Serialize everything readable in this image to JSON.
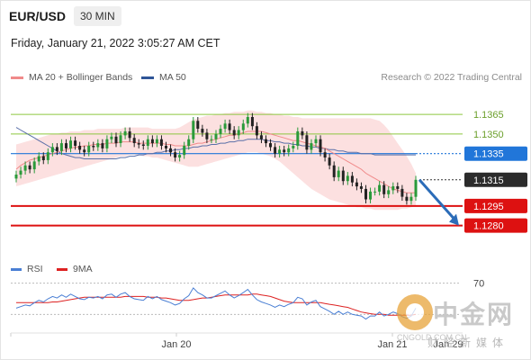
{
  "header": {
    "symbol": "EUR/USD",
    "timeframe": "30 MIN",
    "timestamp": "Friday, January 21, 2022 3:05:27 AM CET"
  },
  "legend": {
    "items": [
      {
        "label": "MA 20 + Bollinger Bands",
        "color": "#f08a8a"
      },
      {
        "label": "MA 50",
        "color": "#2f5597"
      }
    ],
    "copyright": "Research © 2022 Trading Central"
  },
  "rsi_legend": {
    "items": [
      {
        "label": "RSI",
        "color": "#4a7fd4"
      },
      {
        "label": "9MA",
        "color": "#dd2222"
      }
    ]
  },
  "watermark": {
    "cn": "中金网",
    "url": "CNGOLD.COM.CN",
    "media": "财经新媒体"
  },
  "chart_data": {
    "type": "candlestick",
    "x_tick_labels": [
      "Jan 20",
      "Jan 21"
    ],
    "extra_x_label": "Jan 29",
    "y_range": [
      1.1255,
      1.1385
    ],
    "price_levels": [
      {
        "label": "1.1365",
        "value": 1.1365,
        "kind": "resistance",
        "color": "#8dc63f"
      },
      {
        "label": "1.1350",
        "value": 1.135,
        "kind": "resistance",
        "color": "#8dc63f"
      },
      {
        "label": "1.1335",
        "value": 1.1335,
        "kind": "pivot",
        "color": "#2176d9"
      },
      {
        "label": "1.1315",
        "value": 1.1315,
        "kind": "last",
        "color": "#333333"
      },
      {
        "label": "1.1295",
        "value": 1.1295,
        "kind": "support",
        "color": "#dd1111"
      },
      {
        "label": "1.1280",
        "value": 1.128,
        "kind": "support",
        "color": "#dd1111"
      }
    ],
    "forecast_arrow": {
      "from": 1.1315,
      "to": 1.128
    },
    "close": [
      1.1319,
      1.1322,
      1.1326,
      1.1323,
      1.1329,
      1.1333,
      1.133,
      1.1336,
      1.134,
      1.1337,
      1.1343,
      1.1339,
      1.1345,
      1.1341,
      1.1338,
      1.1336,
      1.1341,
      1.134,
      1.1343,
      1.1339,
      1.1346,
      1.1348,
      1.1343,
      1.1349,
      1.1352,
      1.1347,
      1.1343,
      1.1342,
      1.1341,
      1.1346,
      1.1343,
      1.1346,
      1.1341,
      1.1339,
      1.1336,
      1.1332,
      1.1334,
      1.1341,
      1.1346,
      1.136,
      1.1354,
      1.1351,
      1.1346,
      1.1346,
      1.135,
      1.1354,
      1.1358,
      1.1353,
      1.1349,
      1.1353,
      1.1358,
      1.1363,
      1.1356,
      1.1349,
      1.1346,
      1.1343,
      1.134,
      1.1335,
      1.1338,
      1.1336,
      1.1339,
      1.1341,
      1.1352,
      1.1349,
      1.1338,
      1.1343,
      1.1346,
      1.1336,
      1.1332,
      1.1326,
      1.1317,
      1.1322,
      1.1314,
      1.1318,
      1.1313,
      1.131,
      1.1308,
      1.13,
      1.1306,
      1.1306,
      1.1311,
      1.1304,
      1.1307,
      1.131,
      1.1308,
      1.1302,
      1.1299,
      1.1302,
      1.1315
    ],
    "ma20": [
      1.1323,
      1.1326,
      1.1328,
      1.133,
      1.1331,
      1.1332,
      1.1333,
      1.1334,
      1.1335,
      1.1336,
      1.1337,
      1.1338,
      1.1339,
      1.134,
      1.134,
      1.1341,
      1.1341,
      1.1342,
      1.1342,
      1.1342,
      1.1343,
      1.1343,
      1.1343,
      1.1344,
      1.1344,
      1.1344,
      1.1344,
      1.1343,
      1.1343,
      1.1343,
      1.1343,
      1.1343,
      1.1343,
      1.1342,
      1.1342,
      1.1341,
      1.1341,
      1.1341,
      1.1341,
      1.1342,
      1.1343,
      1.1343,
      1.1344,
      1.1345,
      1.1346,
      1.1347,
      1.1348,
      1.1349,
      1.1349,
      1.135,
      1.1351,
      1.1352,
      1.1352,
      1.1352,
      1.1352,
      1.1351,
      1.135,
      1.1349,
      1.1348,
      1.1347,
      1.1346,
      1.1345,
      1.1345,
      1.1344,
      1.1343,
      1.1342,
      1.1341,
      1.134,
      1.1339,
      1.1337,
      1.1335,
      1.1333,
      1.1331,
      1.1329,
      1.1327,
      1.1325,
      1.1323,
      1.132,
      1.1318,
      1.1316,
      1.1314,
      1.1312,
      1.131,
      1.1308,
      1.1307,
      1.1306,
      1.1305,
      1.1305,
      1.1305
    ],
    "bb_upper": [
      1.1342,
      1.1343,
      1.1344,
      1.1345,
      1.1346,
      1.1347,
      1.1348,
      1.1349,
      1.135,
      1.135,
      1.1351,
      1.1351,
      1.1352,
      1.1352,
      1.1352,
      1.1353,
      1.1353,
      1.1353,
      1.1354,
      1.1354,
      1.1354,
      1.1354,
      1.1354,
      1.1354,
      1.1355,
      1.1355,
      1.1355,
      1.1355,
      1.1355,
      1.1355,
      1.1354,
      1.1354,
      1.1354,
      1.1354,
      1.1354,
      1.1354,
      1.1355,
      1.1357,
      1.1359,
      1.1361,
      1.1362,
      1.1363,
      1.1364,
      1.1364,
      1.1365,
      1.1365,
      1.1366,
      1.1366,
      1.1367,
      1.1367,
      1.1367,
      1.1368,
      1.1368,
      1.1367,
      1.1367,
      1.1366,
      1.1366,
      1.1365,
      1.1365,
      1.1364,
      1.1364,
      1.1363,
      1.1363,
      1.1362,
      1.1362,
      1.1362,
      1.1362,
      1.1362,
      1.1362,
      1.1362,
      1.1362,
      1.1362,
      1.1362,
      1.1362,
      1.1362,
      1.1362,
      1.1362,
      1.1362,
      1.1362,
      1.1361,
      1.136,
      1.1357,
      1.1353,
      1.1348,
      1.1343,
      1.1338,
      1.1333,
      1.1327,
      1.132
    ],
    "bb_lower": [
      1.131,
      1.1311,
      1.1312,
      1.1313,
      1.1314,
      1.1315,
      1.1316,
      1.1317,
      1.1318,
      1.1319,
      1.132,
      1.1321,
      1.1322,
      1.1323,
      1.1324,
      1.1325,
      1.1326,
      1.1327,
      1.1328,
      1.1329,
      1.133,
      1.1331,
      1.1332,
      1.1333,
      1.1333,
      1.1334,
      1.1334,
      1.1334,
      1.1333,
      1.1333,
      1.1332,
      1.1332,
      1.1331,
      1.133,
      1.1329,
      1.1328,
      1.1327,
      1.1326,
      1.1325,
      1.1325,
      1.1325,
      1.1326,
      1.1327,
      1.1328,
      1.1329,
      1.133,
      1.1331,
      1.1332,
      1.1333,
      1.1334,
      1.1335,
      1.1336,
      1.1336,
      1.1336,
      1.1335,
      1.1334,
      1.1333,
      1.1331,
      1.1329,
      1.1326,
      1.1323,
      1.132,
      1.1317,
      1.1314,
      1.1311,
      1.1308,
      1.1306,
      1.1304,
      1.1302,
      1.13,
      1.1299,
      1.1298,
      1.1297,
      1.1296,
      1.1295,
      1.1294,
      1.1294,
      1.1293,
      1.1293,
      1.1292,
      1.1292,
      1.1292,
      1.1292,
      1.1292,
      1.1292,
      1.1293,
      1.1293,
      1.1294,
      1.1295
    ],
    "ma50": [
      1.1355,
      1.1353,
      1.1351,
      1.1349,
      1.1347,
      1.1345,
      1.1343,
      1.1341,
      1.1339,
      1.1337,
      1.1335,
      1.1334,
      1.1333,
      1.1332,
      1.1332,
      1.1331,
      1.1331,
      1.1331,
      1.1331,
      1.1331,
      1.1331,
      1.1331,
      1.1331,
      1.1332,
      1.1332,
      1.1333,
      1.1333,
      1.1334,
      1.1334,
      1.1335,
      1.1335,
      1.1336,
      1.1336,
      1.1337,
      1.1337,
      1.1338,
      1.1338,
      1.1339,
      1.1339,
      1.134,
      1.134,
      1.1341,
      1.1341,
      1.1342,
      1.1342,
      1.1343,
      1.1343,
      1.1344,
      1.1344,
      1.1345,
      1.1345,
      1.1346,
      1.1346,
      1.1346,
      1.1346,
      1.1345,
      1.1345,
      1.1344,
      1.1344,
      1.1343,
      1.1343,
      1.1342,
      1.1342,
      1.1341,
      1.1341,
      1.134,
      1.134,
      1.1339,
      1.1339,
      1.1338,
      1.1338,
      1.1337,
      1.1337,
      1.1336,
      1.1336,
      1.1336,
      1.1335,
      1.1335,
      1.1335,
      1.1334,
      1.1334,
      1.1334,
      1.1334,
      1.1334,
      1.1334,
      1.1334,
      1.1334,
      1.1334,
      1.1334
    ],
    "rsi": {
      "level_label": "70",
      "ylim": [
        20,
        80
      ],
      "rsi": [
        38,
        40,
        42,
        41,
        45,
        48,
        46,
        50,
        53,
        51,
        55,
        52,
        56,
        53,
        50,
        49,
        52,
        51,
        53,
        50,
        55,
        56,
        52,
        56,
        58,
        53,
        50,
        49,
        48,
        53,
        50,
        53,
        49,
        47,
        45,
        42,
        44,
        50,
        54,
        64,
        58,
        55,
        51,
        51,
        54,
        57,
        60,
        55,
        51,
        54,
        58,
        62,
        55,
        49,
        46,
        44,
        42,
        39,
        42,
        40,
        43,
        45,
        52,
        50,
        42,
        46,
        48,
        40,
        37,
        34,
        30,
        34,
        30,
        33,
        30,
        29,
        28,
        24,
        28,
        28,
        33,
        28,
        30,
        33,
        31,
        27,
        25,
        28,
        38
      ],
      "ma9": [
        45,
        45,
        45,
        45,
        45,
        45,
        45,
        45,
        46,
        46,
        47,
        48,
        49,
        50,
        51,
        52,
        52,
        52,
        52,
        52,
        52,
        52,
        52,
        52,
        53,
        53,
        53,
        53,
        53,
        52,
        52,
        52,
        51,
        51,
        50,
        49,
        48,
        48,
        48,
        49,
        50,
        51,
        51,
        52,
        53,
        54,
        55,
        55,
        55,
        55,
        55,
        55,
        56,
        56,
        55,
        54,
        53,
        51,
        49,
        47,
        46,
        45,
        45,
        45,
        45,
        45,
        45,
        45,
        44,
        43,
        42,
        41,
        40,
        39,
        37,
        35,
        33,
        32,
        31,
        30,
        30,
        30,
        29,
        29,
        29,
        29,
        29,
        29,
        30
      ]
    }
  }
}
